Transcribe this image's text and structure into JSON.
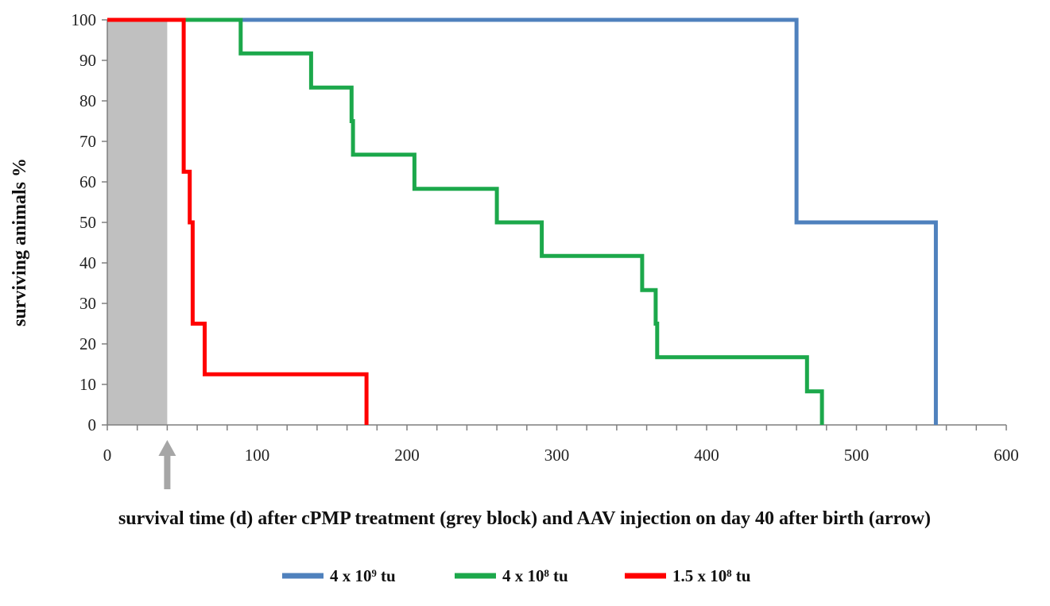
{
  "chart_data": {
    "type": "line",
    "step": true,
    "xlabel": "survival time (d) after  cPMP treatment (grey block) and AAV injection on day 40 after birth (arrow)",
    "ylabel": "surviving animals %",
    "xlim": [
      0,
      600
    ],
    "ylim": [
      0,
      100
    ],
    "x_ticks": [
      0,
      100,
      200,
      300,
      400,
      500,
      600
    ],
    "x_minor_step": 20,
    "y_ticks": [
      0,
      10,
      20,
      30,
      40,
      50,
      60,
      70,
      80,
      90,
      100
    ],
    "grid": false,
    "legend_position": "bottom",
    "shaded_region": {
      "x_start": 0,
      "x_end": 40,
      "color": "#c0c0c0"
    },
    "arrow_marker": {
      "x": 40,
      "color": "#a6a6a6"
    },
    "series": [
      {
        "name": "4 x 10⁹ tu",
        "color": "#4f81bd",
        "points": [
          [
            0,
            100
          ],
          [
            460,
            100
          ],
          [
            460,
            50
          ],
          [
            553,
            50
          ],
          [
            553,
            0
          ]
        ]
      },
      {
        "name": "4 x 10⁸ tu",
        "color": "#1ca84b",
        "points": [
          [
            0,
            100
          ],
          [
            89,
            100
          ],
          [
            89,
            91.7
          ],
          [
            136,
            91.7
          ],
          [
            136,
            83.3
          ],
          [
            163,
            83.3
          ],
          [
            163,
            75
          ],
          [
            164,
            75
          ],
          [
            164,
            66.7
          ],
          [
            205,
            66.7
          ],
          [
            205,
            58.3
          ],
          [
            260,
            58.3
          ],
          [
            260,
            50
          ],
          [
            290,
            50
          ],
          [
            290,
            41.7
          ],
          [
            357,
            41.7
          ],
          [
            357,
            33.3
          ],
          [
            366,
            33.3
          ],
          [
            366,
            25
          ],
          [
            367,
            25
          ],
          [
            367,
            16.7
          ],
          [
            467,
            16.7
          ],
          [
            467,
            8.3
          ],
          [
            477,
            8.3
          ],
          [
            477,
            0
          ]
        ]
      },
      {
        "name": "1.5 x 10⁸ tu",
        "color": "#ff0000",
        "points": [
          [
            0,
            100
          ],
          [
            51,
            100
          ],
          [
            51,
            62.5
          ],
          [
            55,
            62.5
          ],
          [
            55,
            50
          ],
          [
            57,
            50
          ],
          [
            57,
            25
          ],
          [
            65,
            25
          ],
          [
            65,
            12.5
          ],
          [
            173,
            12.5
          ],
          [
            173,
            0
          ]
        ]
      }
    ]
  }
}
